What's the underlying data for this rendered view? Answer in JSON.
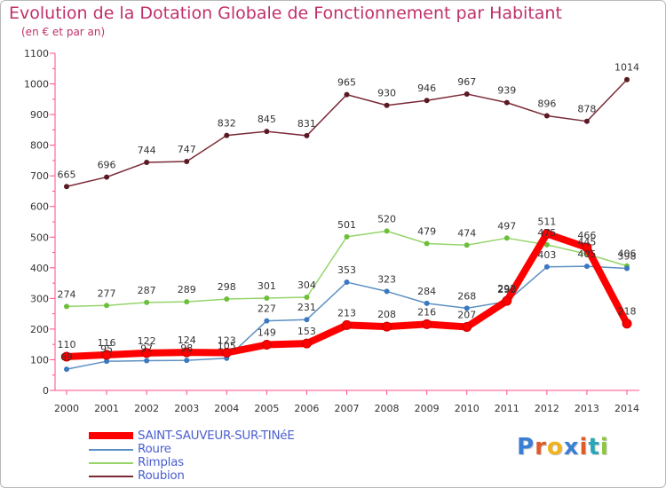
{
  "title": "Evolution de la Dotation Globale de Fonctionnement par Habitant",
  "subtitle": "(en € et par an)",
  "chart_data": {
    "type": "line",
    "title": "Evolution de la Dotation Globale de Fonctionnement par Habitant",
    "subtitle": "(en € et par an)",
    "xlabel": "",
    "ylabel": "",
    "x": [
      "2000",
      "2001",
      "2002",
      "2003",
      "2004",
      "2005",
      "2006",
      "2007",
      "2008",
      "2009",
      "2010",
      "2011",
      "2012",
      "2013",
      "2014"
    ],
    "ylim": [
      0,
      1100
    ],
    "yticks": [
      0,
      100,
      200,
      300,
      400,
      500,
      600,
      700,
      800,
      900,
      1000,
      1100
    ],
    "ytick_labels": [
      "0",
      "100",
      "200",
      "300",
      "400",
      "500",
      "600",
      "700",
      "800",
      "900",
      "1000",
      "1100"
    ],
    "grid": false,
    "legend_position": "bottom-left",
    "series": [
      {
        "name": "Roubion",
        "color": "#7a2a36",
        "marker_color": "#5a1a24",
        "values": [
          665,
          696,
          744,
          747,
          832,
          845,
          831,
          965,
          930,
          946,
          967,
          939,
          896,
          878,
          1014
        ],
        "labels": [
          "665",
          "696",
          "744",
          "747",
          "832",
          "845",
          "831",
          "965",
          "930",
          "946",
          "967",
          "939",
          "896",
          "878",
          "1014"
        ]
      },
      {
        "name": "Rimplas",
        "color": "#96d46a",
        "marker_color": "#6cbf3a",
        "values": [
          274,
          277,
          287,
          289,
          298,
          301,
          304,
          501,
          520,
          479,
          474,
          497,
          475,
          445,
          406
        ],
        "labels": [
          "274",
          "277",
          "287",
          "289",
          "298",
          "301",
          "304",
          "501",
          "520",
          "479",
          "474",
          "497",
          "475",
          "445",
          "406"
        ]
      },
      {
        "name": "Roure",
        "color": "#5c8fc2",
        "marker_color": "#3a78c0",
        "values": [
          69,
          95,
          97,
          98,
          105,
          227,
          231,
          353,
          323,
          284,
          268,
          290,
          403,
          405,
          398
        ],
        "labels": [
          "69",
          "95",
          "97",
          "98",
          "105",
          "227",
          "231",
          "353",
          "323",
          "284",
          "268",
          "290",
          "403",
          "405",
          "398"
        ]
      },
      {
        "name": "SAINT-SAUVEUR-SUR-TINéE",
        "color": "#ff0000",
        "marker_color": "#ff0000",
        "values": [
          110,
          116,
          122,
          124,
          123,
          149,
          153,
          213,
          208,
          216,
          207,
          292,
          511,
          466,
          218
        ],
        "labels": [
          "110",
          "116",
          "122",
          "124",
          "123",
          "149",
          "153",
          "213",
          "208",
          "216",
          "207",
          "292",
          "511",
          "466",
          "218"
        ]
      }
    ]
  },
  "legend": [
    {
      "name": "SAINT-SAUVEUR-SUR-TINéE",
      "color": "#ff0000"
    },
    {
      "name": "Roure",
      "color": "#5c8fc2"
    },
    {
      "name": "Rimplas",
      "color": "#96d46a"
    },
    {
      "name": "Roubion",
      "color": "#7a2a36"
    }
  ],
  "logo": {
    "letters": [
      "P",
      "r",
      "o",
      "x",
      "i",
      "t",
      "i"
    ],
    "colors": [
      "#3b7fd4",
      "#e05a2a",
      "#f2b21b",
      "#3b7fd4",
      "#e05a2a",
      "#2aa6b8",
      "#8dc63f"
    ]
  }
}
